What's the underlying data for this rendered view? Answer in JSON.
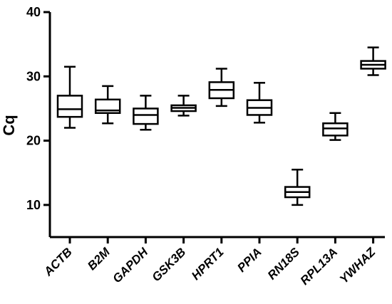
{
  "chart_data": {
    "type": "box",
    "ylabel": "Cq",
    "ylim": [
      5,
      40
    ],
    "yticks": [
      10,
      20,
      30,
      40
    ],
    "categories": [
      "ACTB",
      "B2M",
      "GAPDH",
      "GSK3B",
      "HPRT1",
      "PPIA",
      "RN18S",
      "RPL13A",
      "YWHAZ"
    ],
    "boxes": [
      {
        "category": "ACTB",
        "min": 22.0,
        "q1": 23.7,
        "median": 24.9,
        "q3": 27.0,
        "max": 31.5
      },
      {
        "category": "B2M",
        "min": 22.7,
        "q1": 24.3,
        "median": 24.7,
        "q3": 26.4,
        "max": 28.5
      },
      {
        "category": "GAPDH",
        "min": 21.7,
        "q1": 22.6,
        "median": 24.0,
        "q3": 25.0,
        "max": 27.0
      },
      {
        "category": "GSK3B",
        "min": 23.9,
        "q1": 24.6,
        "median": 25.1,
        "q3": 25.5,
        "max": 27.0
      },
      {
        "category": "HPRT1",
        "min": 25.4,
        "q1": 26.6,
        "median": 27.9,
        "q3": 29.1,
        "max": 31.2
      },
      {
        "category": "PPIA",
        "min": 22.8,
        "q1": 24.0,
        "median": 25.1,
        "q3": 26.3,
        "max": 29.0
      },
      {
        "category": "RN18S",
        "min": 10.0,
        "q1": 11.2,
        "median": 12.0,
        "q3": 12.8,
        "max": 15.5
      },
      {
        "category": "RPL13A",
        "min": 20.1,
        "q1": 20.8,
        "median": 21.9,
        "q3": 22.7,
        "max": 24.3
      },
      {
        "category": "YWHAZ",
        "min": 30.2,
        "q1": 31.2,
        "median": 31.8,
        "q3": 32.4,
        "max": 34.5
      }
    ]
  }
}
